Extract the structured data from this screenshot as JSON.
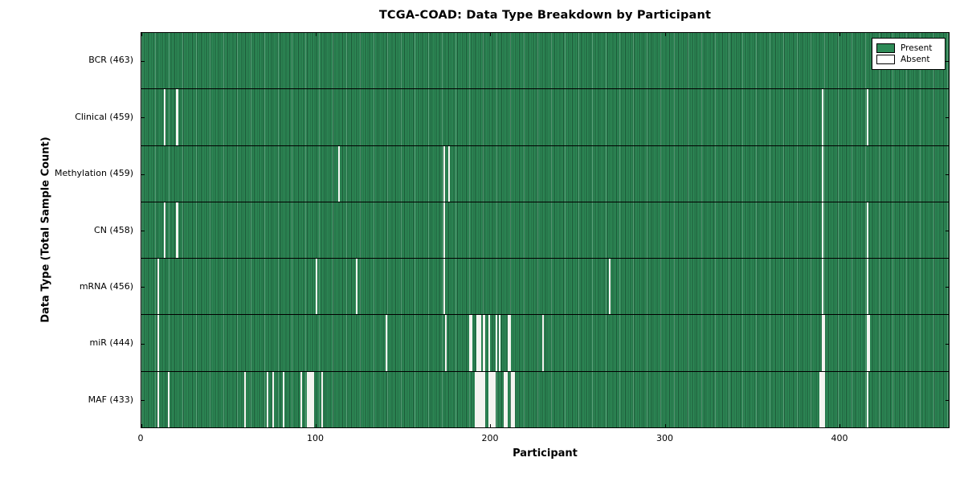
{
  "chart_data": {
    "type": "heatmap",
    "title": "TCGA-COAD: Data Type Breakdown by Participant",
    "xlabel": "Participant",
    "ylabel": "Data Type (Total Sample Count)",
    "n_participants": 463,
    "x_ticks": [
      0,
      100,
      200,
      300,
      400
    ],
    "grid": false,
    "legend_position": "upper right",
    "legend_entries": [
      {
        "label": "Present",
        "color": "#2e8b57"
      },
      {
        "label": "Absent",
        "color": "#ffffff"
      }
    ],
    "rows": [
      {
        "name": "BCR",
        "label": "BCR (463)",
        "total": 463,
        "absent_participants": []
      },
      {
        "name": "Clinical",
        "label": "Clinical (459)",
        "total": 459,
        "absent_participants": [
          13,
          20,
          390,
          416
        ]
      },
      {
        "name": "Methylation",
        "label": "Methylation (459)",
        "total": 459,
        "absent_participants": [
          113,
          173,
          176,
          390
        ]
      },
      {
        "name": "CN",
        "label": "CN (458)",
        "total": 458,
        "absent_participants": [
          13,
          20,
          173,
          390,
          416
        ]
      },
      {
        "name": "mRNA",
        "label": "mRNA (456)",
        "total": 456,
        "absent_participants": [
          9,
          100,
          123,
          173,
          268,
          390,
          416
        ]
      },
      {
        "name": "miR",
        "label": "miR (444)",
        "total": 444,
        "absent_participants": [
          9,
          140,
          174,
          188,
          189,
          192,
          193,
          194,
          196,
          199,
          203,
          205,
          210,
          211,
          230,
          390,
          391,
          416,
          417
        ]
      },
      {
        "name": "MAF",
        "label": "MAF (433)",
        "total": 433,
        "absent_participants": [
          9,
          15,
          59,
          72,
          75,
          81,
          91,
          95,
          96,
          97,
          98,
          103,
          191,
          192,
          193,
          194,
          195,
          196,
          199,
          200,
          201,
          202,
          208,
          209,
          212,
          213,
          389,
          390,
          391,
          416
        ]
      }
    ]
  }
}
